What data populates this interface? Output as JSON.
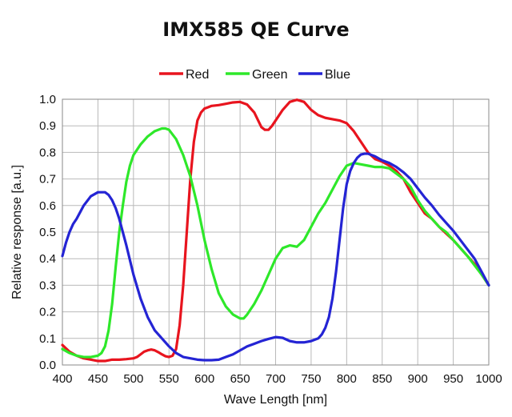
{
  "chart_data": {
    "type": "line",
    "title": "IMX585 QE Curve",
    "xlabel": "Wave Length [nm]",
    "ylabel": "Relative response [a.u.]",
    "xlim": [
      400,
      1000
    ],
    "ylim": [
      0,
      1.0
    ],
    "x_ticks": [
      400,
      450,
      500,
      550,
      600,
      650,
      700,
      750,
      800,
      850,
      900,
      950,
      1000
    ],
    "y_ticks": [
      0.0,
      0.1,
      0.2,
      0.3,
      0.4,
      0.5,
      0.6,
      0.7,
      0.8,
      0.9,
      1.0
    ],
    "y_tick_labels": [
      "0.0",
      "0.1",
      "0.2",
      "0.3",
      "0.4",
      "0.5",
      "0.6",
      "0.7",
      "0.8",
      "0.9",
      "1.0"
    ],
    "grid": true,
    "legend_position": "top",
    "series": [
      {
        "name": "Red",
        "color": "#e8141e",
        "x": [
          400,
          410,
          420,
          430,
          440,
          450,
          460,
          470,
          480,
          490,
          500,
          505,
          510,
          515,
          520,
          525,
          530,
          535,
          540,
          545,
          550,
          555,
          560,
          565,
          570,
          575,
          580,
          585,
          590,
          595,
          600,
          605,
          610,
          620,
          630,
          640,
          650,
          660,
          670,
          680,
          685,
          690,
          695,
          700,
          710,
          720,
          730,
          740,
          750,
          760,
          770,
          780,
          790,
          800,
          810,
          820,
          830,
          840,
          850,
          860,
          870,
          880,
          890,
          900,
          910,
          920,
          930,
          940,
          950,
          960,
          970,
          980,
          990,
          1000
        ],
        "values": [
          0.075,
          0.05,
          0.035,
          0.025,
          0.02,
          0.015,
          0.015,
          0.02,
          0.02,
          0.022,
          0.025,
          0.03,
          0.04,
          0.05,
          0.055,
          0.058,
          0.055,
          0.048,
          0.04,
          0.033,
          0.03,
          0.035,
          0.06,
          0.15,
          0.3,
          0.5,
          0.7,
          0.84,
          0.92,
          0.95,
          0.965,
          0.97,
          0.975,
          0.978,
          0.983,
          0.988,
          0.99,
          0.98,
          0.95,
          0.895,
          0.885,
          0.885,
          0.9,
          0.92,
          0.96,
          0.99,
          0.998,
          0.99,
          0.96,
          0.94,
          0.93,
          0.925,
          0.92,
          0.91,
          0.88,
          0.84,
          0.8,
          0.775,
          0.765,
          0.75,
          0.73,
          0.7,
          0.65,
          0.61,
          0.57,
          0.55,
          0.52,
          0.495,
          0.47,
          0.44,
          0.41,
          0.38,
          0.34,
          0.3
        ]
      },
      {
        "name": "Green",
        "color": "#2ee82a",
        "x": [
          400,
          410,
          420,
          430,
          440,
          450,
          455,
          460,
          465,
          470,
          475,
          480,
          485,
          490,
          495,
          500,
          510,
          520,
          530,
          540,
          545,
          550,
          560,
          570,
          580,
          590,
          600,
          610,
          620,
          630,
          640,
          650,
          655,
          660,
          670,
          680,
          690,
          700,
          710,
          720,
          730,
          740,
          750,
          760,
          770,
          780,
          790,
          800,
          810,
          820,
          830,
          840,
          850,
          860,
          870,
          880,
          890,
          900,
          910,
          920,
          930,
          940,
          950,
          960,
          970,
          980,
          990,
          1000
        ],
        "values": [
          0.06,
          0.045,
          0.035,
          0.03,
          0.03,
          0.035,
          0.045,
          0.07,
          0.13,
          0.23,
          0.37,
          0.5,
          0.6,
          0.69,
          0.75,
          0.79,
          0.83,
          0.86,
          0.88,
          0.89,
          0.89,
          0.885,
          0.85,
          0.79,
          0.71,
          0.6,
          0.47,
          0.36,
          0.27,
          0.22,
          0.19,
          0.175,
          0.175,
          0.19,
          0.23,
          0.28,
          0.34,
          0.4,
          0.44,
          0.45,
          0.445,
          0.47,
          0.52,
          0.57,
          0.61,
          0.66,
          0.71,
          0.75,
          0.76,
          0.755,
          0.75,
          0.745,
          0.745,
          0.74,
          0.72,
          0.7,
          0.67,
          0.62,
          0.58,
          0.55,
          0.52,
          0.5,
          0.47,
          0.44,
          0.41,
          0.375,
          0.34,
          0.3
        ]
      },
      {
        "name": "Blue",
        "color": "#2424d4",
        "x": [
          400,
          405,
          410,
          415,
          420,
          430,
          440,
          450,
          455,
          460,
          465,
          470,
          475,
          480,
          490,
          500,
          510,
          520,
          530,
          540,
          550,
          560,
          570,
          580,
          590,
          600,
          610,
          620,
          630,
          640,
          650,
          660,
          670,
          680,
          690,
          700,
          710,
          720,
          730,
          740,
          750,
          760,
          765,
          770,
          775,
          780,
          785,
          790,
          795,
          800,
          805,
          810,
          815,
          820,
          825,
          830,
          840,
          850,
          860,
          870,
          880,
          890,
          900,
          910,
          920,
          930,
          940,
          950,
          960,
          970,
          980,
          990,
          1000
        ],
        "values": [
          0.41,
          0.46,
          0.5,
          0.53,
          0.55,
          0.6,
          0.635,
          0.65,
          0.65,
          0.65,
          0.64,
          0.62,
          0.59,
          0.55,
          0.45,
          0.34,
          0.25,
          0.18,
          0.13,
          0.1,
          0.07,
          0.045,
          0.03,
          0.025,
          0.02,
          0.018,
          0.018,
          0.02,
          0.03,
          0.04,
          0.055,
          0.07,
          0.08,
          0.09,
          0.098,
          0.105,
          0.102,
          0.09,
          0.085,
          0.085,
          0.09,
          0.1,
          0.115,
          0.14,
          0.18,
          0.25,
          0.35,
          0.47,
          0.59,
          0.68,
          0.73,
          0.76,
          0.78,
          0.792,
          0.795,
          0.795,
          0.785,
          0.77,
          0.76,
          0.745,
          0.725,
          0.7,
          0.665,
          0.63,
          0.6,
          0.565,
          0.535,
          0.505,
          0.47,
          0.435,
          0.4,
          0.35,
          0.3
        ]
      }
    ]
  }
}
